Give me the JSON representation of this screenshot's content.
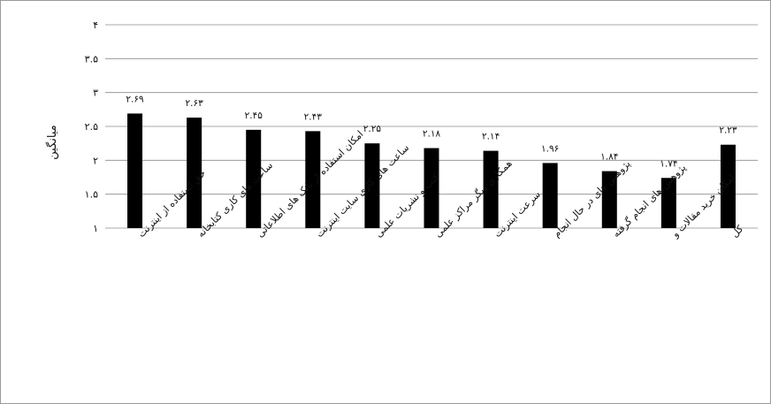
{
  "chart_data": {
    "type": "bar",
    "ylabel": "میانگین",
    "ylim": [
      1,
      4
    ],
    "yticks": [
      {
        "value": 1,
        "label": "۱"
      },
      {
        "value": 1.5,
        "label": "۱.۵"
      },
      {
        "value": 2,
        "label": "۲"
      },
      {
        "value": 2.5,
        "label": "۲.۵"
      },
      {
        "value": 3,
        "label": "۳"
      },
      {
        "value": 3.5,
        "label": "۳.۵"
      },
      {
        "value": 4,
        "label": "۴"
      }
    ],
    "grid": true,
    "bar_color": "#000000",
    "categories": [
      "حق استفاده از اینترنت",
      "ساعت های کاری کتابخانه",
      "امکان استفاده از بانک های اطلاعاتی",
      "ساعت های کاری سایت اینترنت",
      "کتب و نشریات علمی",
      "همکاری دیگر مراکز علمی",
      "سرعت اینترنت",
      "پژوهش های در حال انجام",
      "پژوهش های انجام گرفته",
      "امکان خرید مقالات و",
      "کل"
    ],
    "values": [
      2.69,
      2.63,
      2.45,
      2.43,
      2.25,
      2.18,
      2.14,
      1.96,
      1.84,
      1.74,
      2.23
    ],
    "value_labels": [
      "۲.۶۹",
      "۲.۶۳",
      "۲.۴۵",
      "۲.۴۳",
      "۲.۲۵",
      "۲.۱۸",
      "۲.۱۴",
      "۱.۹۶",
      "۱.۸۴",
      "۱.۷۴",
      "۲.۲۳"
    ]
  }
}
